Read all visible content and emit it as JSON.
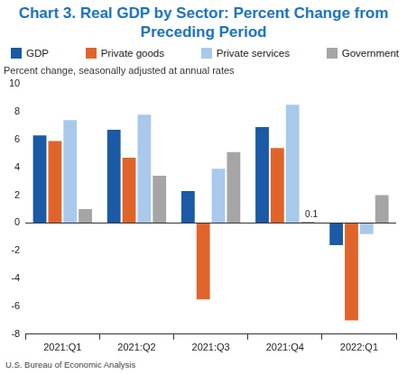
{
  "chart_data": {
    "type": "bar",
    "title": "Chart 3. Real GDP by Sector: Percent Change from Preceding Period",
    "y_label": "Percent change, seasonally adjusted at annual rates",
    "source": "U.S. Bureau of Economic Analysis",
    "categories": [
      "2021:Q1",
      "2021:Q2",
      "2021:Q3",
      "2021:Q4",
      "2022:Q1"
    ],
    "series": [
      {
        "name": "GDP",
        "color": "#1a5aa6",
        "values": [
          6.3,
          6.7,
          2.3,
          6.9,
          -1.6
        ]
      },
      {
        "name": "Private goods",
        "color": "#e0642a",
        "values": [
          5.9,
          4.7,
          -5.5,
          5.4,
          -7.0
        ]
      },
      {
        "name": "Private services",
        "color": "#a8c9ec",
        "values": [
          7.4,
          7.8,
          3.9,
          8.5,
          -0.8
        ]
      },
      {
        "name": "Government",
        "color": "#a5a5a5",
        "values": [
          1.0,
          3.4,
          5.1,
          0.1,
          2.0
        ]
      }
    ],
    "ylim": [
      -8,
      10
    ],
    "yticks": [
      -8,
      -6,
      -4,
      -2,
      0,
      2,
      4,
      6,
      8,
      10
    ],
    "grid": false,
    "legend": "top",
    "annotations": [
      {
        "series": "Government",
        "category": "2021:Q4",
        "text": "0.1"
      }
    ]
  }
}
